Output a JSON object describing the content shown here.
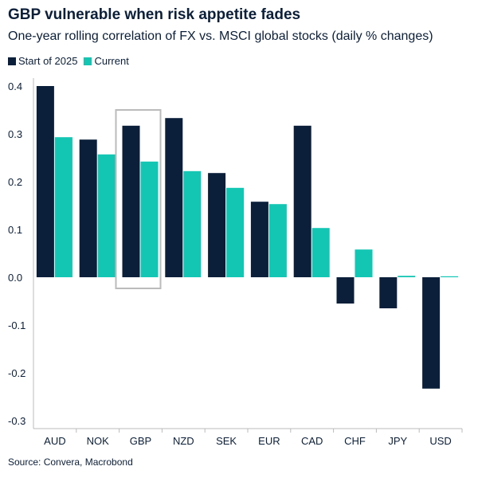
{
  "chart_data": {
    "type": "bar",
    "title": "GBP vulnerable when risk appetite fades",
    "subtitle": "One-year rolling correlation of FX vs. MSCI global stocks (daily % changes)",
    "categories": [
      "AUD",
      "NOK",
      "GBP",
      "NZD",
      "SEK",
      "EUR",
      "CAD",
      "CHF",
      "JPY",
      "USD"
    ],
    "series": [
      {
        "name": "Start of 2025",
        "color": "#0b1f3a",
        "values": [
          0.4,
          0.288,
          0.317,
          0.333,
          0.218,
          0.158,
          0.317,
          -0.055,
          -0.065,
          -0.233
        ]
      },
      {
        "name": "Current",
        "color": "#13c6b3",
        "values": [
          0.293,
          0.257,
          0.242,
          0.222,
          0.187,
          0.153,
          0.103,
          0.058,
          0.003,
          0.002
        ]
      }
    ],
    "yticks": [
      "0.4",
      "0.3",
      "0.2",
      "0.1",
      "0.0",
      "-0.1",
      "-0.2",
      "-0.3"
    ],
    "ylim": [
      -0.3,
      0.4
    ],
    "highlight": "GBP",
    "grid": false,
    "legend": "top-left",
    "source": "Source: Convera, Macrobond"
  }
}
